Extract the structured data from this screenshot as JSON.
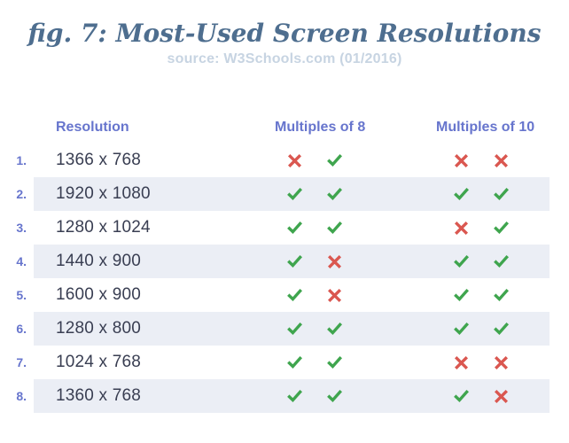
{
  "title": "fig. 7: Most-Used Screen Resolutions",
  "subtitle": "source: W3Schools.com (01/2016)",
  "colors": {
    "title": "#4e6e8f",
    "subtitle": "#c7d4e2",
    "accent": "#6775cd",
    "text": "#393e52",
    "stripe": "#ebeef5",
    "check": "#3fa54e",
    "cross": "#da5750"
  },
  "icons": {
    "check": "check-icon",
    "cross": "cross-icon"
  },
  "table": {
    "headers": {
      "resolution": "Resolution",
      "multiples_of_8": "Multiples of 8",
      "multiples_of_10": "Multiples of 10"
    },
    "rows": [
      {
        "num": "1.",
        "resolution": "1366 x 768",
        "multiples_of_8": [
          "cross",
          "check"
        ],
        "multiples_of_10": [
          "cross",
          "cross"
        ]
      },
      {
        "num": "2.",
        "resolution": "1920 x 1080",
        "multiples_of_8": [
          "check",
          "check"
        ],
        "multiples_of_10": [
          "check",
          "check"
        ]
      },
      {
        "num": "3.",
        "resolution": "1280 x 1024",
        "multiples_of_8": [
          "check",
          "check"
        ],
        "multiples_of_10": [
          "cross",
          "check"
        ]
      },
      {
        "num": "4.",
        "resolution": "1440 x 900",
        "multiples_of_8": [
          "check",
          "cross"
        ],
        "multiples_of_10": [
          "check",
          "check"
        ]
      },
      {
        "num": "5.",
        "resolution": "1600 x 900",
        "multiples_of_8": [
          "check",
          "cross"
        ],
        "multiples_of_10": [
          "check",
          "check"
        ]
      },
      {
        "num": "6.",
        "resolution": "1280 x 800",
        "multiples_of_8": [
          "check",
          "check"
        ],
        "multiples_of_10": [
          "check",
          "check"
        ]
      },
      {
        "num": "7.",
        "resolution": "1024 x 768",
        "multiples_of_8": [
          "check",
          "check"
        ],
        "multiples_of_10": [
          "cross",
          "cross"
        ]
      },
      {
        "num": "8.",
        "resolution": "1360 x 768",
        "multiples_of_8": [
          "check",
          "check"
        ],
        "multiples_of_10": [
          "check",
          "cross"
        ]
      }
    ]
  },
  "chart_data": {
    "type": "table",
    "title": "fig. 7: Most-Used Screen Resolutions",
    "subtitle": "source: W3Schools.com (01/2016)",
    "columns": [
      "#",
      "Resolution",
      "Multiples of 8",
      "Multiples of 10"
    ],
    "rows": [
      [
        "1.",
        "1366 x 768",
        [
          "cross",
          "check"
        ],
        [
          "cross",
          "cross"
        ]
      ],
      [
        "2.",
        "1920 x 1080",
        [
          "check",
          "check"
        ],
        [
          "check",
          "check"
        ]
      ],
      [
        "3.",
        "1280 x 1024",
        [
          "check",
          "check"
        ],
        [
          "cross",
          "check"
        ]
      ],
      [
        "4.",
        "1440 x 900",
        [
          "check",
          "cross"
        ],
        [
          "check",
          "check"
        ]
      ],
      [
        "5.",
        "1600 x 900",
        [
          "check",
          "cross"
        ],
        [
          "check",
          "check"
        ]
      ],
      [
        "6.",
        "1280 x 800",
        [
          "check",
          "check"
        ],
        [
          "check",
          "check"
        ]
      ],
      [
        "7.",
        "1024 x 768",
        [
          "check",
          "check"
        ],
        [
          "cross",
          "cross"
        ]
      ],
      [
        "8.",
        "1360 x 768",
        [
          "check",
          "check"
        ],
        [
          "check",
          "cross"
        ]
      ]
    ],
    "legend_position": "none",
    "grid": "alternating-row-stripes"
  }
}
